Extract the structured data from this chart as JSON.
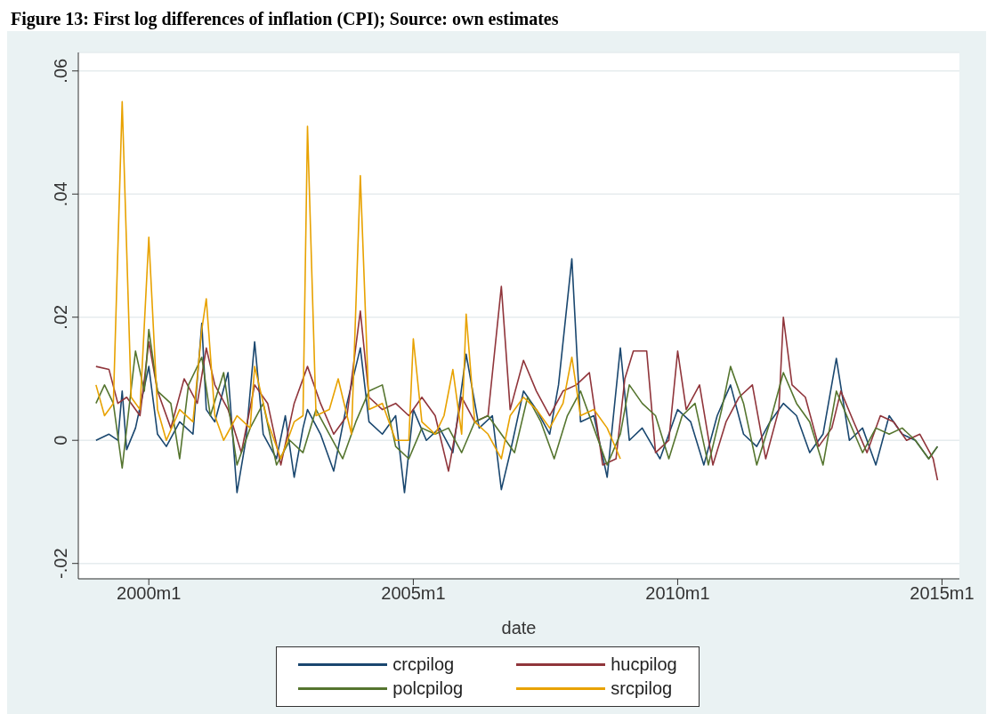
{
  "chart_data": {
    "type": "line",
    "title": "Figure 13: First log differences of inflation (CPI); Source: own estimates",
    "xlabel": "date",
    "xlim": [
      "1998-09",
      "2015-05"
    ],
    "xticks": [
      {
        "value": "2000-01",
        "label": "2000m1"
      },
      {
        "value": "2005-01",
        "label": "2005m1"
      },
      {
        "value": "2010-01",
        "label": "2010m1"
      },
      {
        "value": "2015-01",
        "label": "2015m1"
      }
    ],
    "ylim": [
      -0.0225,
      0.063
    ],
    "yticks": [
      {
        "value": -0.02,
        "label": "-.02"
      },
      {
        "value": 0,
        "label": "0"
      },
      {
        "value": 0.02,
        "label": ".02"
      },
      {
        "value": 0.04,
        "label": ".04"
      },
      {
        "value": 0.06,
        "label": ".06"
      }
    ],
    "grid": "y",
    "legend": "bottom",
    "marker": "none",
    "line_style": "solid",
    "series": [
      {
        "name": "crcpilog",
        "color": "#1a476f",
        "x": [
          "1999-01",
          "1999-04",
          "1999-06",
          "1999-07",
          "1999-08",
          "1999-10",
          "2000-01",
          "2000-03",
          "2000-05",
          "2000-08",
          "2000-11",
          "2001-01",
          "2001-02",
          "2001-04",
          "2001-07",
          "2001-09",
          "2001-11",
          "2002-01",
          "2002-03",
          "2002-06",
          "2002-08",
          "2002-10",
          "2002-12",
          "2003-01",
          "2003-04",
          "2003-07",
          "2003-10",
          "2004-01",
          "2004-03",
          "2004-06",
          "2004-09",
          "2004-11",
          "2005-01",
          "2005-04",
          "2005-07",
          "2005-10",
          "2006-01",
          "2006-04",
          "2006-07",
          "2006-09",
          "2006-11",
          "2007-02",
          "2007-05",
          "2007-08",
          "2007-10",
          "2008-01",
          "2008-03",
          "2008-06",
          "2008-09",
          "2008-12",
          "2009-02",
          "2009-05",
          "2009-09",
          "2010-01",
          "2010-04",
          "2010-07",
          "2010-10",
          "2011-01",
          "2011-04",
          "2011-07",
          "2011-10",
          "2012-01",
          "2012-04",
          "2012-07",
          "2012-10",
          "2013-01",
          "2013-04",
          "2013-07",
          "2013-10",
          "2014-01",
          "2014-04",
          "2014-07",
          "2014-10",
          "2014-12"
        ],
        "values": [
          0,
          0.001,
          0,
          0.008,
          -0.0015,
          0.002,
          0.012,
          0.001,
          -0.001,
          0.003,
          0.001,
          0.019,
          0.005,
          0.003,
          0.011,
          -0.0085,
          0,
          0.016,
          0.001,
          -0.003,
          0.004,
          -0.006,
          0.002,
          0.005,
          0.001,
          -0.005,
          0.006,
          0.015,
          0.003,
          0.001,
          0.004,
          -0.0085,
          0.005,
          0,
          0.002,
          -0.002,
          0.014,
          0.002,
          0.004,
          -0.008,
          -0.002,
          0.008,
          0.005,
          0.001,
          0.009,
          0.0295,
          0.003,
          0.004,
          -0.006,
          0.015,
          0,
          0.002,
          -0.003,
          0.005,
          0.003,
          -0.004,
          0.004,
          0.009,
          0.001,
          -0.001,
          0.003,
          0.006,
          0.004,
          -0.002,
          0.001,
          0.0133,
          0,
          0.002,
          -0.004,
          0.004,
          0.001,
          0,
          -0.003,
          -0.001
        ]
      },
      {
        "name": "hucpilog",
        "color": "#90353b",
        "x": [
          "1999-01",
          "1999-04",
          "1999-06",
          "1999-08",
          "1999-11",
          "2000-01",
          "2000-03",
          "2000-06",
          "2000-09",
          "2000-12",
          "2001-02",
          "2001-04",
          "2001-07",
          "2001-10",
          "2002-01",
          "2002-04",
          "2002-07",
          "2002-10",
          "2003-01",
          "2003-04",
          "2003-07",
          "2003-10",
          "2004-01",
          "2004-03",
          "2004-06",
          "2004-09",
          "2004-12",
          "2005-03",
          "2005-06",
          "2005-09",
          "2005-12",
          "2006-03",
          "2006-06",
          "2006-09",
          "2006-11",
          "2007-02",
          "2007-05",
          "2007-08",
          "2007-11",
          "2008-02",
          "2008-05",
          "2008-08",
          "2008-11",
          "2009-01",
          "2009-03",
          "2009-06",
          "2009-08",
          "2009-11",
          "2010-01",
          "2010-03",
          "2010-06",
          "2010-09",
          "2010-12",
          "2011-03",
          "2011-06",
          "2011-09",
          "2011-12",
          "2012-01",
          "2012-03",
          "2012-06",
          "2012-09",
          "2012-12",
          "2013-02",
          "2013-05",
          "2013-08",
          "2013-11",
          "2014-02",
          "2014-05",
          "2014-08",
          "2014-11",
          "2014-12"
        ],
        "values": [
          0.012,
          0.0115,
          0.006,
          0.007,
          0.004,
          0.016,
          0.008,
          0.002,
          0.01,
          0.006,
          0.015,
          0.009,
          0.005,
          -0.002,
          0.009,
          0.006,
          -0.004,
          0.006,
          0.012,
          0.006,
          0.001,
          0.004,
          0.021,
          0.007,
          0.005,
          0.006,
          0.004,
          0.007,
          0.004,
          -0.005,
          0.007,
          0.003,
          0.004,
          0.025,
          0.005,
          0.013,
          0.008,
          0.004,
          0.008,
          0.009,
          0.011,
          -0.004,
          -0.003,
          0.01,
          0.0145,
          0.0145,
          -0.002,
          0,
          0.0145,
          0.005,
          0.009,
          -0.004,
          0.003,
          0.007,
          0.009,
          -0.003,
          0.005,
          0.02,
          0.009,
          0.007,
          -0.001,
          0.002,
          0.008,
          0.003,
          -0.002,
          0.004,
          0.003,
          0,
          0.001,
          -0.003,
          -0.0065
        ]
      },
      {
        "name": "polcpilog",
        "color": "#55752f",
        "x": [
          "1999-01",
          "1999-03",
          "1999-05",
          "1999-07",
          "1999-10",
          "1999-12",
          "2000-01",
          "2000-03",
          "2000-06",
          "2000-08",
          "2000-10",
          "2001-01",
          "2001-03",
          "2001-06",
          "2001-09",
          "2001-12",
          "2002-03",
          "2002-06",
          "2002-09",
          "2002-12",
          "2003-03",
          "2003-06",
          "2003-09",
          "2003-12",
          "2004-03",
          "2004-06",
          "2004-09",
          "2004-12",
          "2005-03",
          "2005-06",
          "2005-09",
          "2005-12",
          "2006-03",
          "2006-06",
          "2006-09",
          "2006-12",
          "2007-03",
          "2007-06",
          "2007-09",
          "2007-12",
          "2008-03",
          "2008-06",
          "2008-09",
          "2008-12",
          "2009-02",
          "2009-05",
          "2009-08",
          "2009-11",
          "2010-02",
          "2010-05",
          "2010-08",
          "2010-11",
          "2011-01",
          "2011-04",
          "2011-07",
          "2011-10",
          "2012-01",
          "2012-04",
          "2012-07",
          "2012-10",
          "2013-01",
          "2013-04",
          "2013-07",
          "2013-10",
          "2014-01",
          "2014-04",
          "2014-07",
          "2014-10",
          "2014-12"
        ],
        "values": [
          0.006,
          0.009,
          0.006,
          -0.0045,
          0.0145,
          0.008,
          0.018,
          0.008,
          0.006,
          -0.003,
          0.009,
          0.0135,
          0.004,
          0.011,
          -0.004,
          0.002,
          0.006,
          -0.004,
          0,
          -0.002,
          0.005,
          0.001,
          -0.003,
          0.003,
          0.008,
          0.009,
          -0.001,
          -0.003,
          0.002,
          0.001,
          0.002,
          -0.002,
          0.003,
          0.004,
          0.001,
          -0.002,
          0.007,
          0.003,
          -0.003,
          0.004,
          0.008,
          0.002,
          -0.004,
          0.001,
          0.009,
          0.006,
          0.004,
          -0.003,
          0.004,
          0.006,
          -0.004,
          0.005,
          0.012,
          0.006,
          -0.004,
          0.003,
          0.011,
          0.006,
          0.003,
          -0.004,
          0.008,
          0.003,
          -0.002,
          0.002,
          0.001,
          0.002,
          0,
          -0.003,
          -0.001
        ]
      },
      {
        "name": "srcpilog",
        "color": "#e8a200",
        "x": [
          "1999-01",
          "1999-03",
          "1999-05",
          "1999-07",
          "1999-09",
          "1999-11",
          "2000-01",
          "2000-03",
          "2000-05",
          "2000-08",
          "2000-11",
          "2001-01",
          "2001-02",
          "2001-04",
          "2001-06",
          "2001-09",
          "2001-12",
          "2002-01",
          "2002-04",
          "2002-07",
          "2002-10",
          "2002-12",
          "2003-01",
          "2003-03",
          "2003-06",
          "2003-08",
          "2003-11",
          "2004-01",
          "2004-03",
          "2004-06",
          "2004-09",
          "2004-12",
          "2005-01",
          "2005-03",
          "2005-06",
          "2005-08",
          "2005-10",
          "2005-12",
          "2006-01",
          "2006-03",
          "2006-06",
          "2006-09",
          "2006-11",
          "2007-02",
          "2007-05",
          "2007-08",
          "2007-11",
          "2008-01",
          "2008-03",
          "2008-06",
          "2008-09",
          "2008-12"
        ],
        "values": [
          0.009,
          0.004,
          0.006,
          0.055,
          0.007,
          0.005,
          0.033,
          0.005,
          0,
          0.005,
          0.003,
          0.018,
          0.023,
          0.004,
          0,
          0.004,
          0.002,
          0.012,
          0.003,
          -0.003,
          0.003,
          0.004,
          0.051,
          0.004,
          0.005,
          0.01,
          0.001,
          0.043,
          0.005,
          0.006,
          0,
          0,
          0.0165,
          0.003,
          0.001,
          0.004,
          0.0115,
          0.001,
          0.0205,
          0.003,
          0.001,
          -0.003,
          0.004,
          0.007,
          0.005,
          0.002,
          0.006,
          0.0135,
          0.004,
          0.005,
          0.002,
          -0.003
        ]
      }
    ]
  }
}
